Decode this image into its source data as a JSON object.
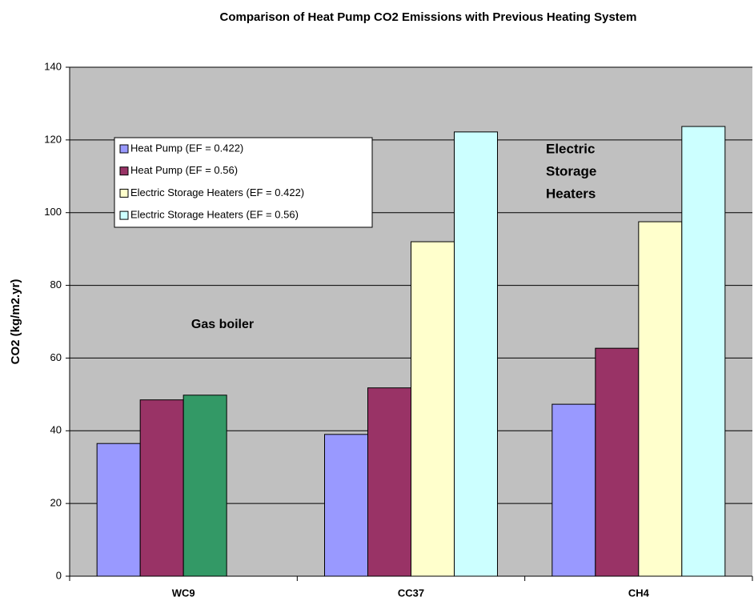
{
  "chart_data": {
    "type": "bar",
    "title": "Comparison of Heat Pump CO2 Emissions with Previous Heating System",
    "y_label": "CO2 (kg/m2.yr)",
    "categories": [
      "WC9",
      "CC37",
      "CH4"
    ],
    "series": [
      {
        "name": "Heat Pump (EF = 0.422)",
        "color": "#9999ff",
        "values": [
          36.5,
          39,
          47.3
        ]
      },
      {
        "name": "Heat Pump (EF = 0.56)",
        "color": "#993366",
        "values": [
          48.5,
          51.8,
          62.7
        ]
      },
      {
        "name": "Electric Storage Heaters (EF = 0.422)",
        "color": "#ffffcc",
        "values": [
          null,
          92,
          97.5
        ]
      },
      {
        "name": "Electric Storage Heaters (EF = 0.56)",
        "color": "#ccffff",
        "values": [
          null,
          122.2,
          123.7
        ]
      }
    ],
    "gas_boiler": {
      "text": "Gas boiler",
      "category": 0,
      "slot": 2,
      "value": 49.8,
      "color": "#339966"
    },
    "annotation": {
      "lines": [
        "Electric",
        "Storage",
        "Heaters"
      ]
    },
    "ylim": [
      0,
      140
    ],
    "yticks": [
      0,
      20,
      40,
      60,
      80,
      100,
      120,
      140
    ],
    "grid": true,
    "plot_background": "#c0c0c0"
  }
}
